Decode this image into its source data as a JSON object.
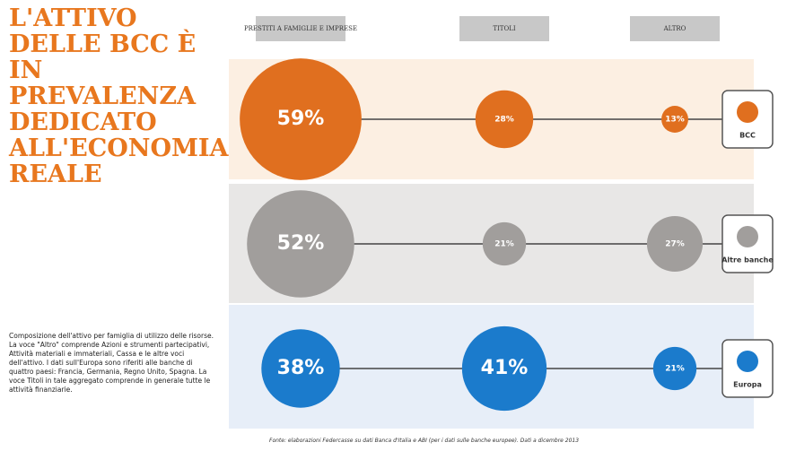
{
  "chart_data": {
    "type": "bubble",
    "title": "L'ATTIVO DELLE BCC È IN PREVALENZA DEDICATO ALL'ECONOMIA REALE",
    "categories": [
      "PRESTITI A FAMIGLIE E IMPRESE",
      "TITOLI",
      "ALTRO"
    ],
    "series": [
      {
        "name": "BCC",
        "color": "#e06f1f",
        "band": "#fcefe2",
        "values": [
          59,
          28,
          13
        ],
        "value_labels": [
          "59%",
          "28%",
          "13%"
        ]
      },
      {
        "name": "Altre banche",
        "color": "#a19e9c",
        "band": "#e8e7e6",
        "values": [
          52,
          21,
          27
        ],
        "value_labels": [
          "52%",
          "21%",
          "27%"
        ]
      },
      {
        "name": "Europa",
        "color": "#1b7bcc",
        "band": "#e7eef8",
        "values": [
          38,
          41,
          21
        ],
        "value_labels": [
          "38%",
          "41%",
          "21%"
        ]
      }
    ],
    "note": "Composizione dell'attivo per famiglia di utilizzo delle risorse. La voce \"Altro\" comprende Azioni e strumenti partecipativi, Attività materiali e immateriali, Cassa e le altre voci dell'attivo. I dati sull'Europa sono riferiti alle banche di quattro paesi: Francia, Germania, Regno Unito, Spagna. La voce Titoli in tale aggregato comprende in generale tutte le attività finanziarie.",
    "source": "Fonte: elaborazioni Federcasse su dati Banca d'Italia e ABI (per i dati sulle banche europee). Dati a dicembre 2013"
  }
}
